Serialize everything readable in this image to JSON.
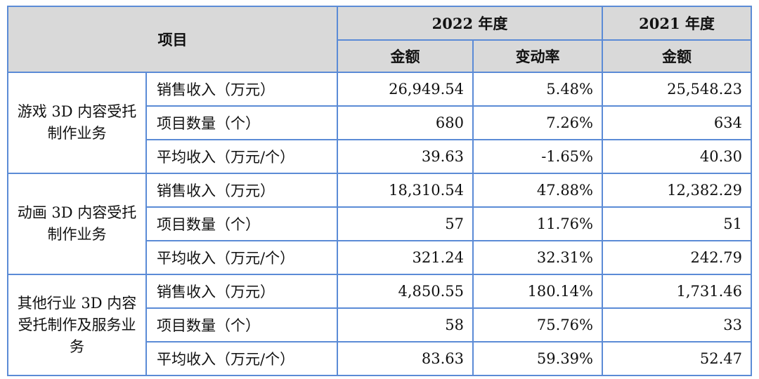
{
  "header": {
    "item_label": "项目",
    "period_2022": "2022 年度",
    "period_2021": "2021 年度",
    "amount_label": "金额",
    "change_label": "变动率"
  },
  "groups": [
    {
      "category": "游戏 3D 内容受托制作业务",
      "rows": [
        {
          "metric": "销售收入（万元）",
          "amount_2022": "26,949.54",
          "change": "5.48%",
          "amount_2021": "25,548.23"
        },
        {
          "metric": "项目数量（个）",
          "amount_2022": "680",
          "change": "7.26%",
          "amount_2021": "634"
        },
        {
          "metric": "平均收入（万元/个）",
          "amount_2022": "39.63",
          "change": "-1.65%",
          "amount_2021": "40.30"
        }
      ]
    },
    {
      "category": "动画 3D 内容受托制作业务",
      "rows": [
        {
          "metric": "销售收入（万元）",
          "amount_2022": "18,310.54",
          "change": "47.88%",
          "amount_2021": "12,382.29"
        },
        {
          "metric": "项目数量（个）",
          "amount_2022": "57",
          "change": "11.76%",
          "amount_2021": "51"
        },
        {
          "metric": "平均收入（万元/个）",
          "amount_2022": "321.24",
          "change": "32.31%",
          "amount_2021": "242.79"
        }
      ]
    },
    {
      "category": "其他行业 3D 内容受托制作及服务业务",
      "rows": [
        {
          "metric": "销售收入（万元）",
          "amount_2022": "4,850.55",
          "change": "180.14%",
          "amount_2021": "1,731.46"
        },
        {
          "metric": "项目数量（个）",
          "amount_2022": "58",
          "change": "75.76%",
          "amount_2021": "33"
        },
        {
          "metric": "平均收入（万元/个）",
          "amount_2022": "83.63",
          "change": "59.39%",
          "amount_2021": "52.47"
        }
      ]
    }
  ]
}
